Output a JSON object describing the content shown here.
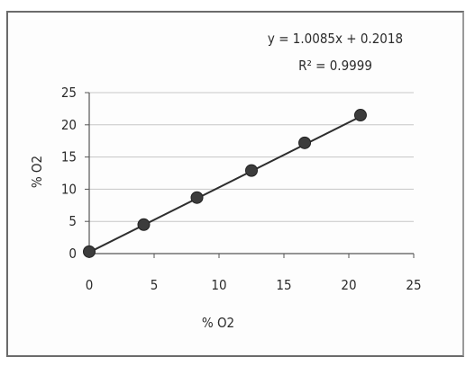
{
  "chart_data": {
    "type": "scatter",
    "x": [
      0,
      4.2,
      8.3,
      12.5,
      16.6,
      20.9
    ],
    "y": [
      0.3,
      4.5,
      8.7,
      12.9,
      17.2,
      21.5
    ],
    "xlabel": "% O2",
    "ylabel": "% O2",
    "xlim": [
      0,
      25
    ],
    "ylim": [
      0,
      25
    ],
    "x_ticks": [
      "0",
      "5",
      "10",
      "15",
      "20",
      "25"
    ],
    "y_ticks": [
      "0",
      "5",
      "10",
      "15",
      "20",
      "25"
    ],
    "grid": "horizontal",
    "trendline": {
      "slope": 1.0085,
      "intercept": 0.2018,
      "equation": "y = 1.0085x + 0.2018",
      "r_squared": "R² = 0.9999"
    },
    "colors": {
      "marker": "#3c3c3c",
      "line": "#2e2e2e",
      "grid": "#c6c6c6",
      "frame": "#6b6b6b"
    }
  }
}
